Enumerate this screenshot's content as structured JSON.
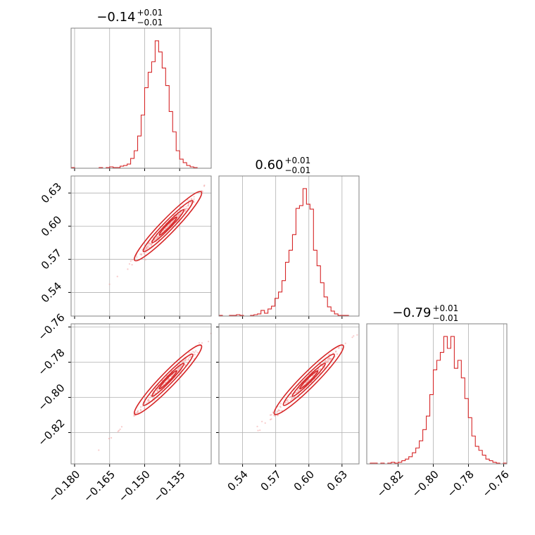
{
  "chart_data": {
    "type": "corner",
    "color": "#d62728",
    "params": [
      {
        "id": "p1",
        "title": {
          "median": "−0.14",
          "plus": "+0.01",
          "minus": "−0.01"
        },
        "range": [
          -0.1815,
          -0.1215
        ],
        "ticks": [
          -0.18,
          -0.165,
          -0.15,
          -0.135
        ],
        "tick_labels": [
          "−0.180",
          "−0.165",
          "−0.150",
          "−0.135"
        ],
        "hist_start": -0.1815,
        "hist_step": 0.0015,
        "hist_counts": [
          1,
          0,
          0,
          0,
          0,
          0,
          0,
          0,
          1,
          0,
          1,
          2,
          1,
          1,
          3,
          4,
          6,
          14,
          25,
          46,
          76,
          115,
          137,
          152,
          182,
          166,
          143,
          118,
          81,
          52,
          25,
          13,
          8,
          4,
          2,
          1,
          0,
          0,
          0,
          0
        ]
      },
      {
        "id": "p2",
        "title": {
          "median": "0.60",
          "plus": "+0.01",
          "minus": "−0.01"
        },
        "range": [
          0.5186,
          0.6454
        ],
        "ticks": [
          0.54,
          0.57,
          0.6,
          0.63
        ],
        "tick_labels": [
          "0.54",
          "0.57",
          "0.60",
          "0.63"
        ],
        "hist_start": 0.5186,
        "hist_step": 0.00317,
        "hist_counts": [
          1,
          0,
          0,
          1,
          1,
          2,
          1,
          0,
          0,
          1,
          2,
          3,
          8,
          4,
          10,
          14,
          25,
          34,
          50,
          76,
          93,
          115,
          152,
          156,
          180,
          158,
          151,
          93,
          71,
          47,
          27,
          13,
          7,
          3,
          1,
          1,
          1,
          0,
          0,
          0
        ]
      },
      {
        "id": "p3",
        "title": {
          "median": "−0.79",
          "plus": "+0.01",
          "minus": "−0.01"
        },
        "range": [
          -0.8378,
          -0.7582
        ],
        "ticks": [
          -0.82,
          -0.8,
          -0.78,
          -0.76
        ],
        "tick_labels": [
          "−0.82",
          "−0.80",
          "−0.78",
          "−0.76"
        ],
        "hist_start": -0.8378,
        "hist_step": 0.00199,
        "hist_counts": [
          0,
          1,
          1,
          0,
          1,
          0,
          1,
          2,
          1,
          2,
          4,
          6,
          9,
          14,
          20,
          29,
          43,
          60,
          87,
          118,
          130,
          140,
          160,
          145,
          160,
          120,
          130,
          108,
          82,
          58,
          35,
          22,
          17,
          11,
          6,
          4,
          2,
          1,
          0,
          1
        ]
      }
    ]
  }
}
